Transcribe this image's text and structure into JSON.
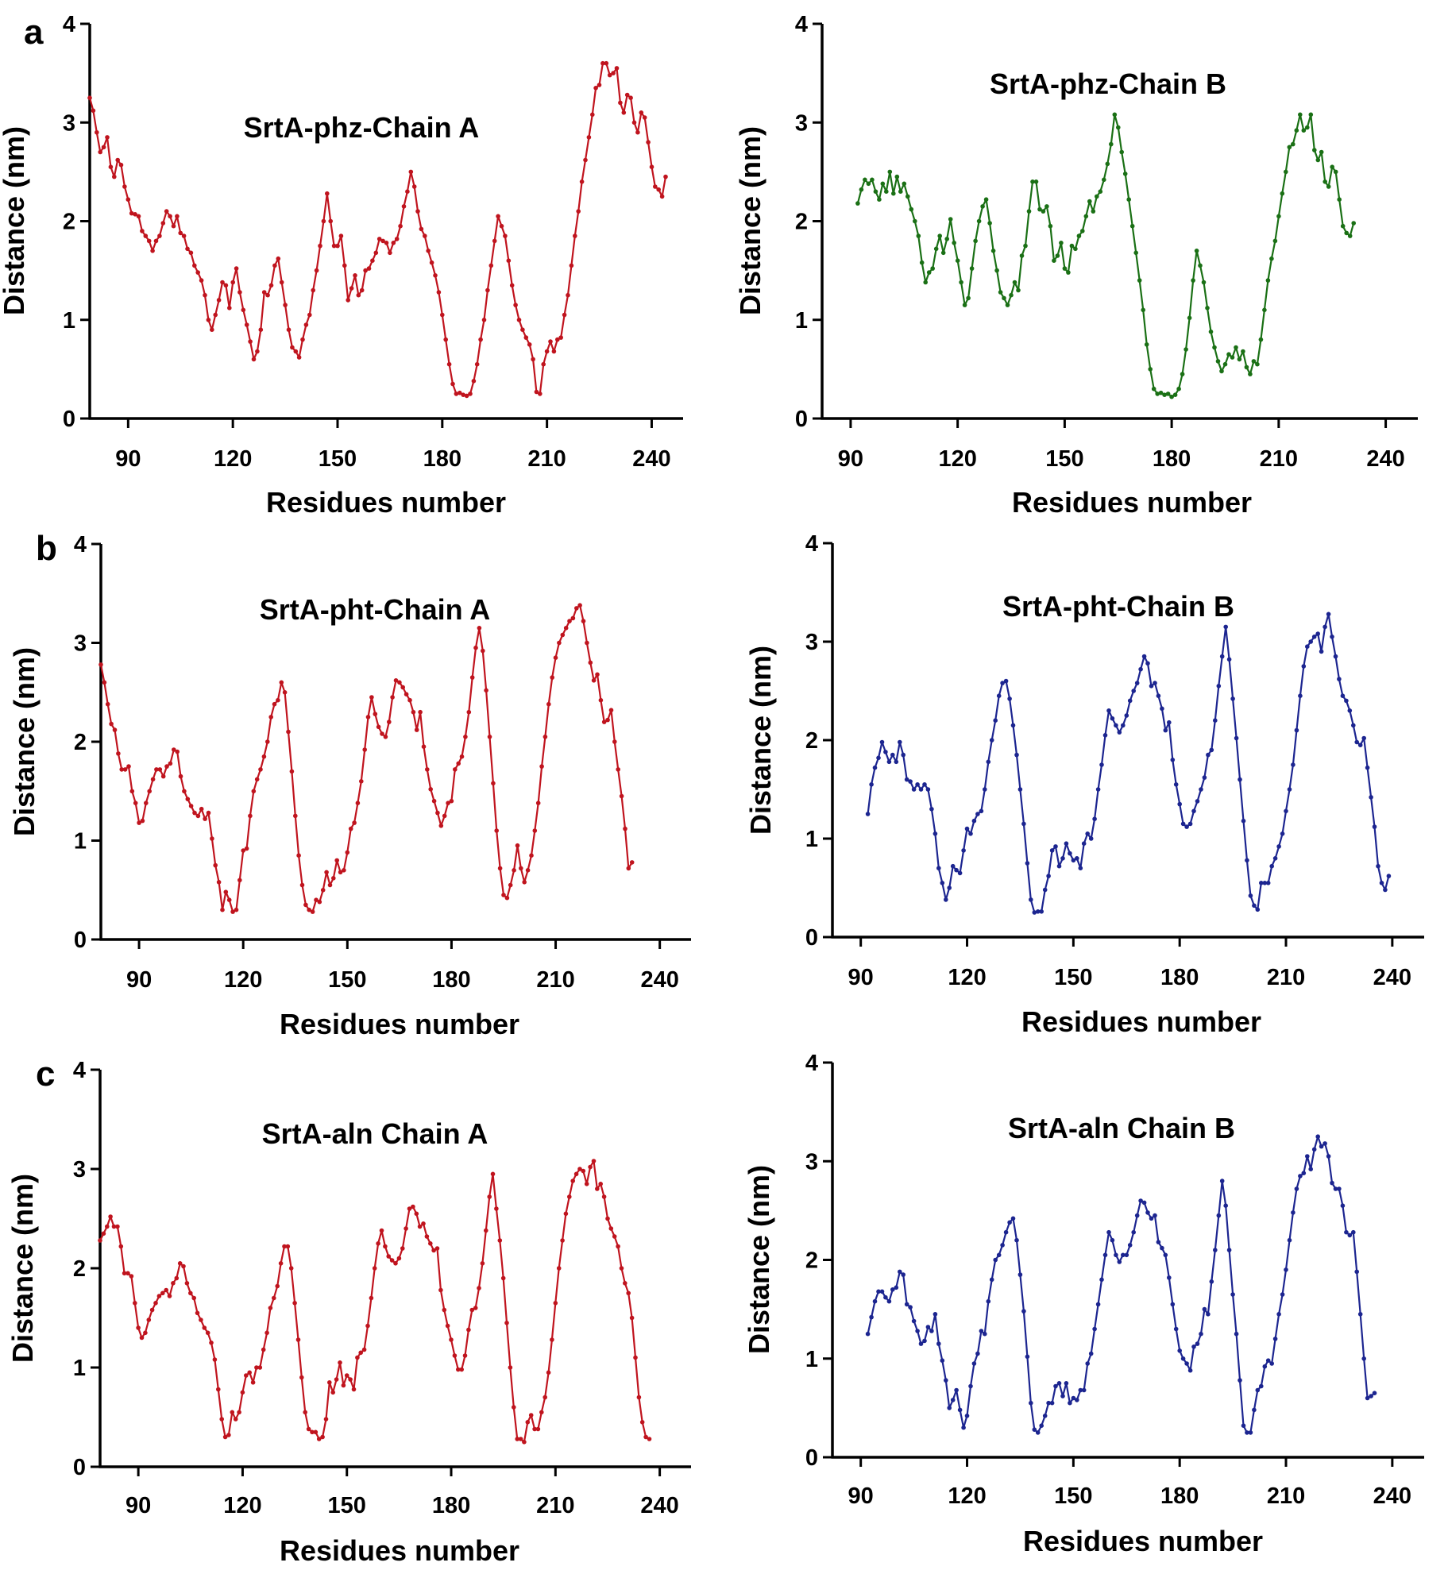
{
  "chart_data": [
    {
      "id": "a-left",
      "panel_letter": "a",
      "type": "line",
      "title": "SrtA-phz-Chain A",
      "xlabel": "Residues number",
      "ylabel": "Distance (nm)",
      "xlim": [
        79,
        249
      ],
      "ylim": [
        0,
        4
      ],
      "xticks": [
        90,
        120,
        150,
        180,
        210,
        240
      ],
      "yticks": [
        0,
        1,
        2,
        3,
        4
      ],
      "color": "#c0141e",
      "start": 79,
      "values": [
        3.25,
        3.12,
        2.9,
        2.7,
        2.75,
        2.85,
        2.55,
        2.45,
        2.62,
        2.57,
        2.35,
        2.22,
        2.08,
        2.07,
        2.05,
        1.9,
        1.85,
        1.8,
        1.7,
        1.8,
        1.85,
        1.98,
        2.1,
        2.05,
        1.95,
        2.05,
        1.88,
        1.85,
        1.72,
        1.68,
        1.55,
        1.48,
        1.4,
        1.25,
        1.0,
        0.9,
        1.05,
        1.2,
        1.38,
        1.35,
        1.12,
        1.38,
        1.52,
        1.28,
        1.1,
        0.95,
        0.78,
        0.6,
        0.68,
        0.9,
        1.28,
        1.25,
        1.35,
        1.55,
        1.62,
        1.38,
        1.15,
        0.9,
        0.72,
        0.68,
        0.62,
        0.8,
        0.95,
        1.05,
        1.3,
        1.5,
        1.75,
        2.0,
        2.28,
        2.0,
        1.75,
        1.75,
        1.85,
        1.55,
        1.2,
        1.32,
        1.45,
        1.25,
        1.3,
        1.5,
        1.52,
        1.6,
        1.68,
        1.82,
        1.8,
        1.78,
        1.68,
        1.78,
        1.82,
        1.95,
        2.15,
        2.3,
        2.5,
        2.35,
        2.1,
        1.92,
        1.85,
        1.7,
        1.58,
        1.45,
        1.28,
        1.05,
        0.8,
        0.55,
        0.35,
        0.25,
        0.26,
        0.24,
        0.23,
        0.25,
        0.38,
        0.55,
        0.8,
        1.0,
        1.3,
        1.55,
        1.8,
        2.05,
        1.95,
        1.85,
        1.6,
        1.35,
        1.15,
        1.0,
        0.9,
        0.82,
        0.75,
        0.6,
        0.27,
        0.25,
        0.55,
        0.68,
        0.78,
        0.68,
        0.8,
        0.82,
        1.05,
        1.25,
        1.55,
        1.85,
        2.1,
        2.4,
        2.62,
        2.85,
        3.08,
        3.35,
        3.38,
        3.6,
        3.6,
        3.48,
        3.5,
        3.55,
        3.2,
        3.1,
        3.28,
        3.25,
        3.0,
        2.9,
        3.1,
        3.05,
        2.8,
        2.55,
        2.35,
        2.32,
        2.25,
        2.45
      ]
    },
    {
      "id": "a-right",
      "panel_letter": "",
      "type": "line",
      "title": "SrtA-phz-Chain B",
      "xlabel": "Residues number",
      "ylabel": "Distance (nm)",
      "xlim": [
        82,
        249
      ],
      "ylim": [
        0,
        4
      ],
      "xticks": [
        90,
        120,
        150,
        180,
        210,
        240
      ],
      "yticks": [
        0,
        1,
        2,
        3,
        4
      ],
      "color": "#1a7015",
      "start": 92,
      "values": [
        2.18,
        2.32,
        2.42,
        2.38,
        2.42,
        2.3,
        2.22,
        2.38,
        2.3,
        2.5,
        2.28,
        2.45,
        2.3,
        2.38,
        2.25,
        2.12,
        2.0,
        1.85,
        1.58,
        1.38,
        1.48,
        1.52,
        1.72,
        1.85,
        1.68,
        1.82,
        2.02,
        1.78,
        1.6,
        1.38,
        1.15,
        1.22,
        1.52,
        1.8,
        2.0,
        2.15,
        2.22,
        1.98,
        1.7,
        1.5,
        1.28,
        1.22,
        1.15,
        1.25,
        1.38,
        1.3,
        1.65,
        1.75,
        2.1,
        2.4,
        2.4,
        2.12,
        2.1,
        2.15,
        1.95,
        1.6,
        1.65,
        1.78,
        1.52,
        1.48,
        1.75,
        1.72,
        1.85,
        1.9,
        2.05,
        2.2,
        2.1,
        2.25,
        2.3,
        2.42,
        2.58,
        2.78,
        3.08,
        2.95,
        2.7,
        2.48,
        2.22,
        1.95,
        1.68,
        1.4,
        1.1,
        0.75,
        0.5,
        0.3,
        0.25,
        0.26,
        0.24,
        0.25,
        0.22,
        0.24,
        0.3,
        0.45,
        0.7,
        1.02,
        1.4,
        1.7,
        1.55,
        1.38,
        1.12,
        0.88,
        0.72,
        0.58,
        0.48,
        0.55,
        0.65,
        0.62,
        0.72,
        0.6,
        0.68,
        0.52,
        0.45,
        0.58,
        0.55,
        0.8,
        1.1,
        1.4,
        1.62,
        1.8,
        2.05,
        2.28,
        2.5,
        2.75,
        2.78,
        2.92,
        3.08,
        2.92,
        2.95,
        3.08,
        2.72,
        2.62,
        2.7,
        2.4,
        2.35,
        2.55,
        2.5,
        2.22,
        1.95,
        1.88,
        1.85,
        1.98
      ]
    },
    {
      "id": "b-left",
      "panel_letter": "b",
      "type": "line",
      "title": "SrtA-pht-Chain A",
      "xlabel": "Residues number",
      "ylabel": "Distance (nm)",
      "xlim": [
        79,
        249
      ],
      "ylim": [
        0,
        4
      ],
      "xticks": [
        90,
        120,
        150,
        180,
        210,
        240
      ],
      "yticks": [
        0,
        1,
        2,
        3,
        4
      ],
      "color": "#c0141e",
      "start": 79,
      "values": [
        2.78,
        2.6,
        2.38,
        2.18,
        2.12,
        1.88,
        1.72,
        1.72,
        1.75,
        1.5,
        1.38,
        1.18,
        1.2,
        1.38,
        1.5,
        1.62,
        1.72,
        1.72,
        1.65,
        1.75,
        1.78,
        1.92,
        1.9,
        1.65,
        1.5,
        1.42,
        1.35,
        1.28,
        1.25,
        1.32,
        1.22,
        1.28,
        1.02,
        0.75,
        0.58,
        0.3,
        0.48,
        0.4,
        0.28,
        0.3,
        0.6,
        0.9,
        0.92,
        1.25,
        1.5,
        1.62,
        1.72,
        1.85,
        2.0,
        2.25,
        2.38,
        2.42,
        2.6,
        2.5,
        2.1,
        1.7,
        1.25,
        0.85,
        0.55,
        0.35,
        0.3,
        0.28,
        0.4,
        0.38,
        0.5,
        0.68,
        0.55,
        0.62,
        0.8,
        0.68,
        0.7,
        0.88,
        1.12,
        1.18,
        1.38,
        1.6,
        1.92,
        2.25,
        2.45,
        2.28,
        2.15,
        2.08,
        2.05,
        2.2,
        2.45,
        2.62,
        2.6,
        2.55,
        2.48,
        2.42,
        2.3,
        2.12,
        2.3,
        1.95,
        1.72,
        1.52,
        1.4,
        1.28,
        1.15,
        1.25,
        1.38,
        1.4,
        1.72,
        1.78,
        1.85,
        2.05,
        2.3,
        2.65,
        2.95,
        3.15,
        2.92,
        2.52,
        2.05,
        1.58,
        1.1,
        0.72,
        0.45,
        0.42,
        0.55,
        0.7,
        0.95,
        0.72,
        0.58,
        0.7,
        0.85,
        1.1,
        1.38,
        1.75,
        2.05,
        2.38,
        2.65,
        2.85,
        3.0,
        3.08,
        3.15,
        3.22,
        3.25,
        3.35,
        3.38,
        3.22,
        3.0,
        2.8,
        2.62,
        2.68,
        2.42,
        2.2,
        2.22,
        2.32,
        2.0,
        1.72,
        1.45,
        1.12,
        0.72,
        0.78
      ]
    },
    {
      "id": "b-right",
      "panel_letter": "",
      "type": "line",
      "title": "SrtA-pht-Chain B",
      "xlabel": "Residues number",
      "ylabel": "Distance (nm)",
      "xlim": [
        82,
        249
      ],
      "ylim": [
        0,
        4
      ],
      "xticks": [
        90,
        120,
        150,
        180,
        210,
        240
      ],
      "yticks": [
        0,
        1,
        2,
        3,
        4
      ],
      "color": "#1c2590",
      "start": 92,
      "values": [
        1.25,
        1.55,
        1.72,
        1.82,
        1.98,
        1.88,
        1.78,
        1.85,
        1.78,
        1.98,
        1.85,
        1.6,
        1.58,
        1.5,
        1.55,
        1.5,
        1.55,
        1.5,
        1.3,
        1.05,
        0.7,
        0.55,
        0.38,
        0.5,
        0.72,
        0.68,
        0.65,
        0.88,
        1.1,
        1.05,
        1.18,
        1.25,
        1.28,
        1.5,
        1.78,
        2.0,
        2.2,
        2.45,
        2.58,
        2.6,
        2.42,
        2.15,
        1.85,
        1.5,
        1.15,
        0.75,
        0.38,
        0.25,
        0.26,
        0.26,
        0.48,
        0.62,
        0.88,
        0.92,
        0.72,
        0.8,
        0.95,
        0.85,
        0.78,
        0.8,
        0.7,
        0.95,
        1.05,
        1.0,
        1.2,
        1.5,
        1.75,
        2.05,
        2.3,
        2.22,
        2.15,
        2.08,
        2.15,
        2.25,
        2.4,
        2.5,
        2.58,
        2.72,
        2.85,
        2.78,
        2.55,
        2.58,
        2.45,
        2.32,
        2.1,
        2.18,
        1.8,
        1.55,
        1.35,
        1.15,
        1.12,
        1.15,
        1.28,
        1.38,
        1.5,
        1.62,
        1.85,
        1.9,
        2.2,
        2.55,
        2.85,
        3.15,
        2.82,
        2.42,
        2.02,
        1.6,
        1.18,
        0.78,
        0.42,
        0.32,
        0.28,
        0.55,
        0.55,
        0.55,
        0.72,
        0.8,
        0.92,
        1.05,
        1.28,
        1.5,
        1.75,
        2.1,
        2.45,
        2.75,
        2.95,
        3.0,
        3.05,
        3.08,
        2.9,
        3.15,
        3.28,
        3.05,
        2.85,
        2.62,
        2.45,
        2.4,
        2.3,
        2.15,
        1.98,
        1.95,
        2.02,
        1.72,
        1.42,
        1.12,
        0.72,
        0.55,
        0.48,
        0.62
      ]
    },
    {
      "id": "c-left",
      "panel_letter": "c",
      "type": "line",
      "title": "SrtA-aln Chain A",
      "xlabel": "Residues number",
      "ylabel": "Distance (nm)",
      "xlim": [
        79,
        249
      ],
      "ylim": [
        0,
        4
      ],
      "xticks": [
        90,
        120,
        150,
        180,
        210,
        240
      ],
      "yticks": [
        0,
        1,
        2,
        3,
        4
      ],
      "color": "#c0141e",
      "start": 79,
      "values": [
        2.28,
        2.35,
        2.42,
        2.52,
        2.42,
        2.42,
        2.22,
        1.95,
        1.95,
        1.92,
        1.65,
        1.4,
        1.3,
        1.35,
        1.48,
        1.58,
        1.65,
        1.72,
        1.75,
        1.78,
        1.72,
        1.85,
        1.9,
        2.05,
        2.02,
        1.85,
        1.75,
        1.7,
        1.55,
        1.48,
        1.4,
        1.35,
        1.25,
        1.08,
        0.78,
        0.48,
        0.3,
        0.32,
        0.55,
        0.48,
        0.55,
        0.75,
        0.92,
        0.95,
        0.85,
        1.0,
        1.0,
        1.18,
        1.35,
        1.6,
        1.7,
        1.82,
        2.05,
        2.22,
        2.22,
        2.0,
        1.65,
        1.28,
        0.9,
        0.55,
        0.38,
        0.35,
        0.35,
        0.28,
        0.3,
        0.48,
        0.85,
        0.75,
        0.88,
        1.05,
        0.82,
        0.92,
        0.88,
        0.78,
        1.1,
        1.15,
        1.18,
        1.42,
        1.7,
        2.0,
        2.25,
        2.38,
        2.22,
        2.12,
        2.08,
        2.05,
        2.1,
        2.2,
        2.4,
        2.6,
        2.62,
        2.55,
        2.42,
        2.45,
        2.32,
        2.25,
        2.18,
        2.2,
        1.78,
        1.58,
        1.42,
        1.28,
        1.12,
        0.98,
        0.98,
        1.12,
        1.38,
        1.58,
        1.6,
        1.8,
        2.05,
        2.38,
        2.72,
        2.95,
        2.6,
        2.28,
        1.9,
        1.45,
        1.0,
        0.6,
        0.28,
        0.28,
        0.25,
        0.45,
        0.52,
        0.38,
        0.38,
        0.55,
        0.7,
        0.95,
        1.28,
        1.65,
        2.0,
        2.28,
        2.55,
        2.72,
        2.88,
        2.95,
        3.0,
        2.98,
        2.85,
        3.02,
        3.08,
        2.8,
        2.85,
        2.72,
        2.5,
        2.4,
        2.32,
        2.22,
        2.0,
        1.85,
        1.75,
        1.5,
        1.1,
        0.7,
        0.45,
        0.3,
        0.28
      ]
    },
    {
      "id": "c-right",
      "panel_letter": "",
      "type": "line",
      "title": "SrtA-aln Chain B",
      "xlabel": "Residues number",
      "ylabel": "Distance (nm)",
      "xlim": [
        82,
        249
      ],
      "ylim": [
        0,
        4
      ],
      "xticks": [
        90,
        120,
        150,
        180,
        210,
        240
      ],
      "yticks": [
        0,
        1,
        2,
        3,
        4
      ],
      "color": "#1c2590",
      "start": 92,
      "values": [
        1.25,
        1.42,
        1.58,
        1.68,
        1.68,
        1.62,
        1.58,
        1.7,
        1.72,
        1.88,
        1.85,
        1.55,
        1.52,
        1.38,
        1.28,
        1.15,
        1.18,
        1.32,
        1.28,
        1.45,
        1.15,
        0.98,
        0.78,
        0.5,
        0.58,
        0.68,
        0.48,
        0.3,
        0.42,
        0.72,
        0.95,
        1.05,
        1.28,
        1.25,
        1.58,
        1.8,
        2.0,
        2.05,
        2.15,
        2.28,
        2.38,
        2.42,
        2.2,
        1.85,
        1.48,
        1.02,
        0.55,
        0.28,
        0.25,
        0.32,
        0.42,
        0.55,
        0.55,
        0.72,
        0.75,
        0.62,
        0.75,
        0.55,
        0.6,
        0.58,
        0.68,
        0.68,
        0.95,
        1.05,
        1.3,
        1.55,
        1.8,
        2.05,
        2.28,
        2.2,
        2.05,
        1.98,
        2.05,
        2.05,
        2.15,
        2.28,
        2.45,
        2.6,
        2.58,
        2.48,
        2.42,
        2.45,
        2.18,
        2.12,
        2.05,
        1.82,
        1.55,
        1.3,
        1.08,
        1.0,
        0.95,
        0.88,
        1.12,
        1.15,
        1.25,
        1.5,
        1.45,
        1.78,
        2.1,
        2.45,
        2.8,
        2.55,
        2.1,
        1.65,
        1.25,
        0.78,
        0.32,
        0.25,
        0.25,
        0.48,
        0.68,
        0.72,
        0.92,
        0.98,
        0.95,
        1.2,
        1.45,
        1.65,
        1.9,
        2.2,
        2.48,
        2.72,
        2.85,
        2.88,
        3.05,
        2.92,
        3.12,
        3.25,
        3.15,
        3.18,
        3.05,
        2.78,
        2.72,
        2.72,
        2.55,
        2.28,
        2.25,
        2.28,
        1.88,
        1.45,
        1.0,
        0.6,
        0.62,
        0.65
      ]
    }
  ]
}
